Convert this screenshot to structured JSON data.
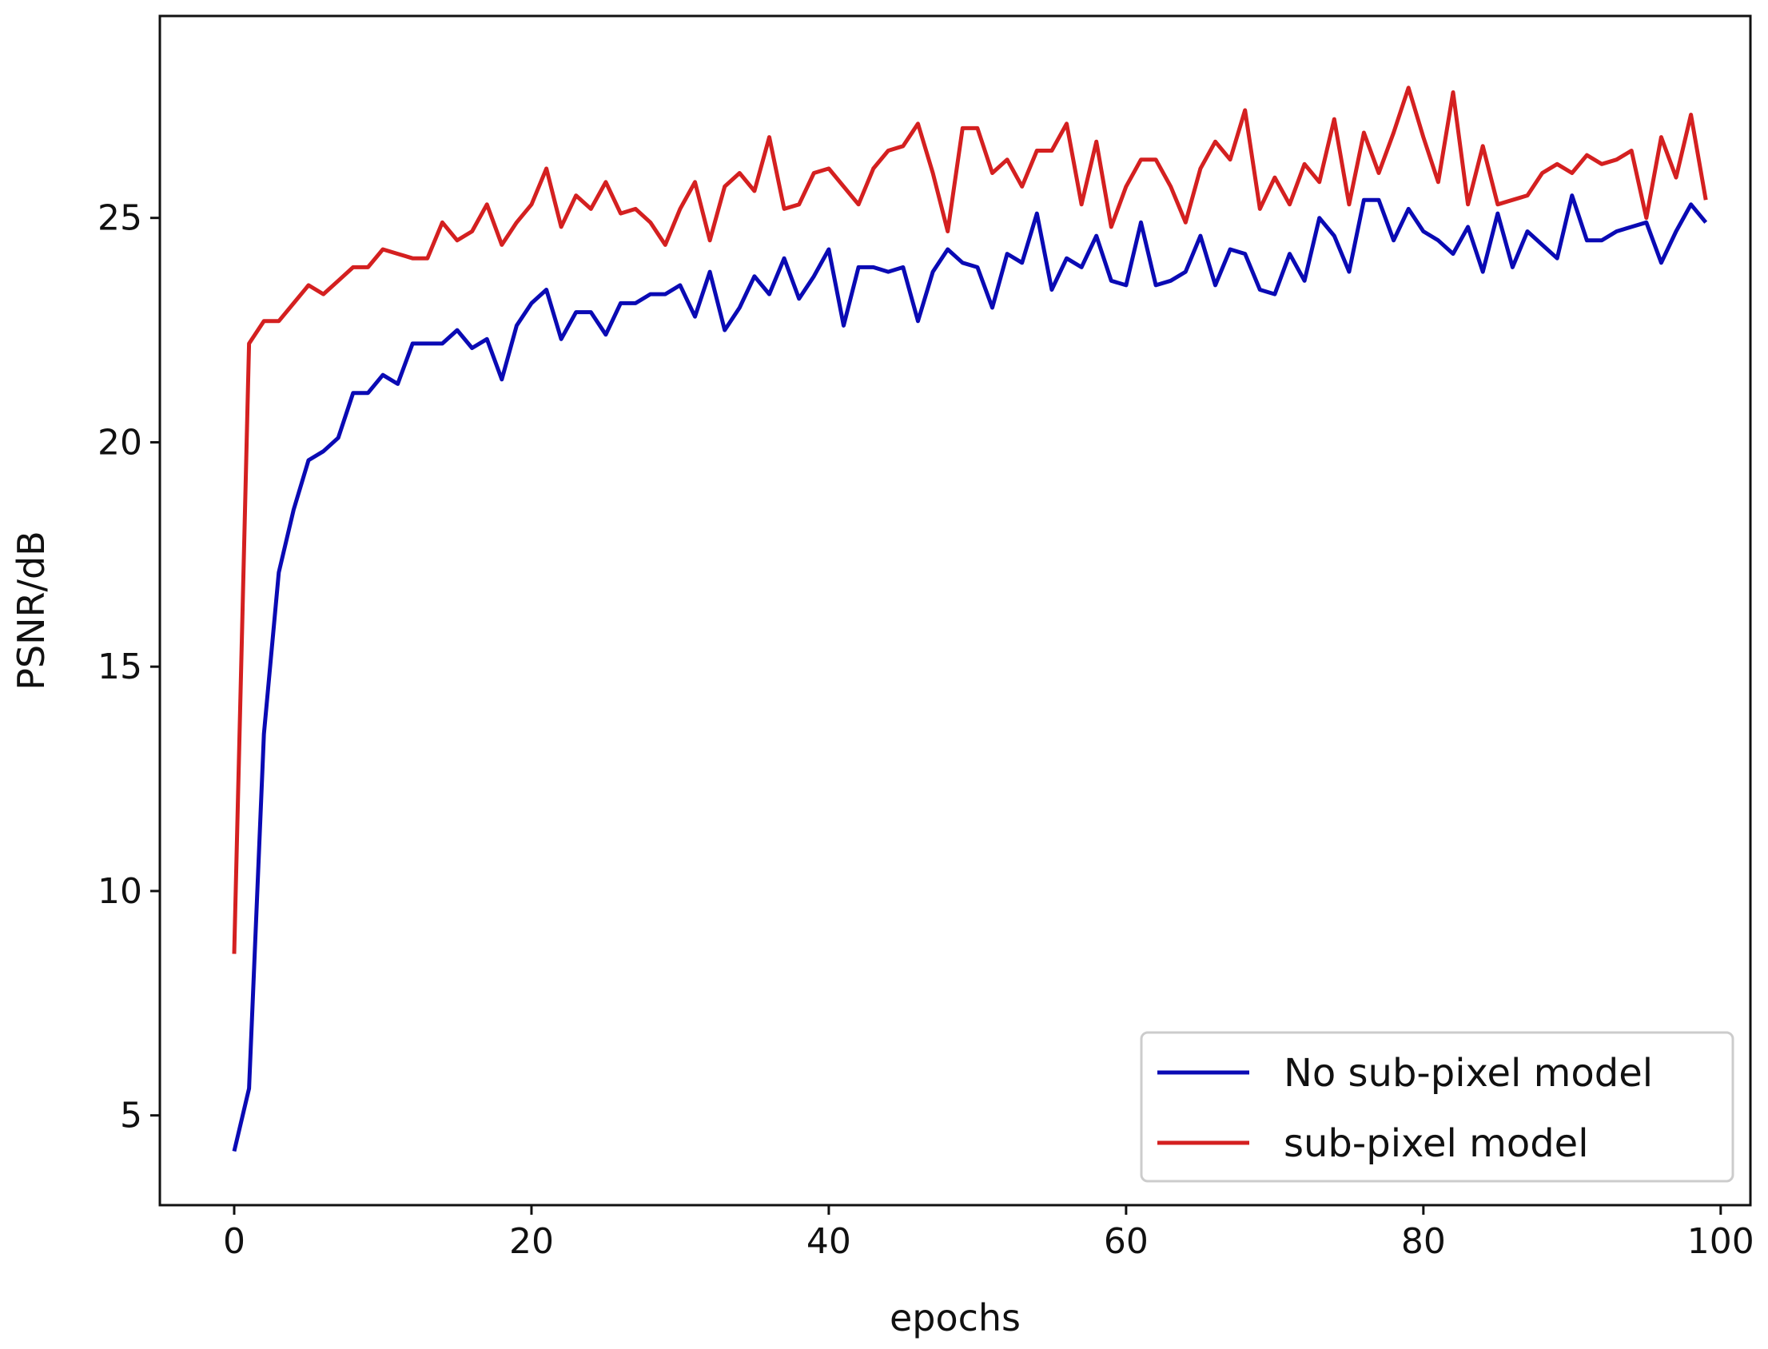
{
  "chart_data": {
    "type": "line",
    "title": "",
    "xlabel": "epochs",
    "ylabel": "PSNR/dB",
    "xlim": [
      -5,
      102
    ],
    "ylim": [
      3,
      29.5
    ],
    "xticks": [
      0,
      20,
      40,
      60,
      80,
      100
    ],
    "yticks": [
      5,
      10,
      15,
      20,
      25
    ],
    "grid": false,
    "legend_position": "lower-right",
    "series": [
      {
        "name": "No sub-pixel model",
        "color": "#0a0ab4",
        "x": [
          0,
          1,
          2,
          3,
          4,
          5,
          6,
          7,
          8,
          9,
          10,
          11,
          12,
          13,
          14,
          15,
          16,
          17,
          18,
          19,
          20,
          21,
          22,
          23,
          24,
          25,
          26,
          27,
          28,
          29,
          30,
          31,
          32,
          33,
          34,
          35,
          36,
          37,
          38,
          39,
          40,
          41,
          42,
          43,
          44,
          45,
          46,
          47,
          48,
          49,
          50,
          51,
          52,
          53,
          54,
          55,
          56,
          57,
          58,
          59,
          60,
          61,
          62,
          63,
          64,
          65,
          66,
          67,
          68,
          69,
          70,
          71,
          72,
          73,
          74,
          75,
          76,
          77,
          78,
          79,
          80,
          81,
          82,
          83,
          84,
          85,
          86,
          87,
          88,
          89,
          90,
          91,
          92,
          93,
          94,
          95,
          96,
          97,
          98,
          99
        ],
        "y": [
          4.2,
          5.6,
          13.5,
          17.1,
          18.5,
          19.6,
          19.8,
          20.1,
          21.1,
          21.1,
          21.5,
          21.3,
          22.2,
          22.2,
          22.2,
          22.5,
          22.1,
          22.3,
          21.4,
          22.6,
          23.1,
          23.4,
          22.3,
          22.9,
          22.9,
          22.4,
          23.1,
          23.1,
          23.3,
          23.3,
          23.5,
          22.8,
          23.8,
          22.5,
          23.0,
          23.7,
          23.3,
          24.1,
          23.2,
          23.7,
          24.3,
          22.6,
          23.9,
          23.9,
          23.8,
          23.9,
          22.7,
          23.8,
          24.3,
          24.0,
          23.9,
          23.0,
          24.2,
          24.0,
          25.1,
          23.4,
          24.1,
          23.9,
          24.6,
          23.6,
          23.5,
          24.9,
          23.5,
          23.6,
          23.8,
          24.6,
          23.5,
          24.3,
          24.2,
          23.4,
          23.3,
          24.2,
          23.6,
          25.0,
          24.6,
          23.8,
          25.4,
          25.4,
          24.5,
          25.2,
          24.7,
          24.5,
          24.2,
          24.8,
          23.8,
          25.1,
          23.9,
          24.7,
          24.4,
          24.1,
          25.5,
          24.5,
          24.5,
          24.7,
          24.8,
          24.9,
          24.0,
          24.7,
          25.3,
          24.9
        ]
      },
      {
        "name": "sub-pixel model",
        "color": "#d42020",
        "x": [
          0,
          1,
          2,
          3,
          4,
          5,
          6,
          7,
          8,
          9,
          10,
          11,
          12,
          13,
          14,
          15,
          16,
          17,
          18,
          19,
          20,
          21,
          22,
          23,
          24,
          25,
          26,
          27,
          28,
          29,
          30,
          31,
          32,
          33,
          34,
          35,
          36,
          37,
          38,
          39,
          40,
          41,
          42,
          43,
          44,
          45,
          46,
          47,
          48,
          49,
          50,
          51,
          52,
          53,
          54,
          55,
          56,
          57,
          58,
          59,
          60,
          61,
          62,
          63,
          64,
          65,
          66,
          67,
          68,
          69,
          70,
          71,
          72,
          73,
          74,
          75,
          76,
          77,
          78,
          79,
          80,
          81,
          82,
          83,
          84,
          85,
          86,
          87,
          88,
          89,
          90,
          91,
          92,
          93,
          94,
          95,
          96,
          97,
          98,
          99
        ],
        "y": [
          8.6,
          22.2,
          22.7,
          22.7,
          23.1,
          23.5,
          23.3,
          23.6,
          23.9,
          23.9,
          24.3,
          24.2,
          24.1,
          24.1,
          24.9,
          24.5,
          24.7,
          25.3,
          24.4,
          24.9,
          25.3,
          26.1,
          24.8,
          25.5,
          25.2,
          25.8,
          25.1,
          25.2,
          24.9,
          24.4,
          25.2,
          25.8,
          24.5,
          25.7,
          26.0,
          25.6,
          26.8,
          25.2,
          25.3,
          26.0,
          26.1,
          25.7,
          25.3,
          26.1,
          26.5,
          26.6,
          27.1,
          26.0,
          24.7,
          27.0,
          27.0,
          26.0,
          26.3,
          25.7,
          26.5,
          26.5,
          27.1,
          25.3,
          26.7,
          24.8,
          25.7,
          26.3,
          26.3,
          25.7,
          24.9,
          26.1,
          26.7,
          26.3,
          27.4,
          25.2,
          25.9,
          25.3,
          26.2,
          25.8,
          27.2,
          25.3,
          26.9,
          26.0,
          26.9,
          27.9,
          26.8,
          25.8,
          27.8,
          25.3,
          26.6,
          25.3,
          25.4,
          25.5,
          26.0,
          26.2,
          26.0,
          26.4,
          26.2,
          26.3,
          26.5,
          25.0,
          26.8,
          25.9,
          27.3,
          25.4
        ]
      }
    ]
  }
}
